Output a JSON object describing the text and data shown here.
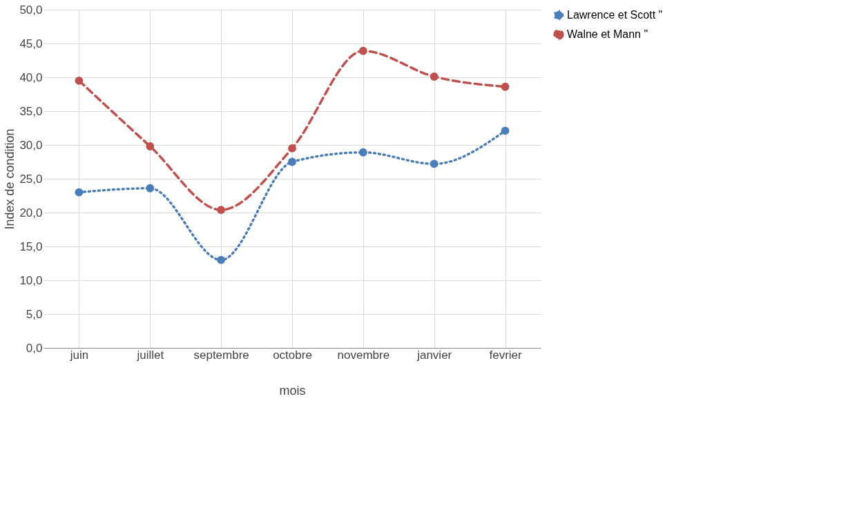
{
  "chart_data": {
    "type": "line",
    "xlabel": "mois",
    "ylabel": "Index de condition",
    "categories": [
      "juin",
      "juillet",
      "septembre",
      "octobre",
      "novembre",
      "janvier",
      "fevrier"
    ],
    "series": [
      {
        "name": "Lawrence et Scott \"",
        "color": "#4a7ebb",
        "line_style": "dotted",
        "values": [
          23.0,
          23.6,
          13.0,
          27.5,
          28.9,
          27.2,
          32.1
        ]
      },
      {
        "name": "Walne et Mann \"",
        "color": "#c0504d",
        "line_style": "dashed",
        "values": [
          39.5,
          29.8,
          20.4,
          29.5,
          43.9,
          40.1,
          38.6
        ]
      }
    ],
    "ylim": [
      0,
      50
    ],
    "yticks": [
      {
        "value": 0,
        "label": "0,0"
      },
      {
        "value": 5,
        "label": "5,0"
      },
      {
        "value": 10,
        "label": "10,0"
      },
      {
        "value": 15,
        "label": "15,0"
      },
      {
        "value": 20,
        "label": "20,0"
      },
      {
        "value": 25,
        "label": "25,0"
      },
      {
        "value": 30,
        "label": "30,0"
      },
      {
        "value": 35,
        "label": "35,0"
      },
      {
        "value": 40,
        "label": "40,0"
      },
      {
        "value": 45,
        "label": "45,0"
      },
      {
        "value": 50,
        "label": "50,0"
      }
    ],
    "grid": true,
    "legend": "right",
    "marker": "circle"
  }
}
